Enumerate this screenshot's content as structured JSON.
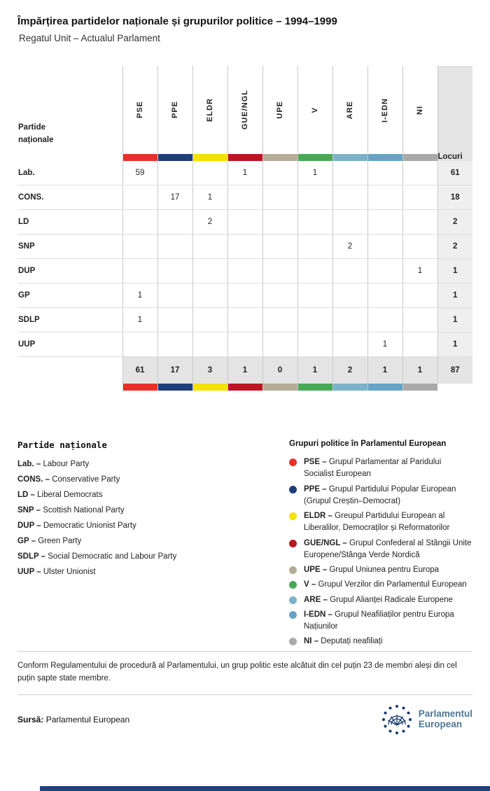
{
  "page": {
    "title": "Împărțirea partidelor naționale și grupurilor politice – 1994–1999",
    "subtitle": "Regatul Unit – Actualul Parlament"
  },
  "table": {
    "row_header_label": "Partide naționale",
    "seats_label": "Locuri",
    "groups": [
      {
        "code": "PSE",
        "color": "#e63129"
      },
      {
        "code": "PPE",
        "color": "#1e3d7b"
      },
      {
        "code": "ELDR",
        "color": "#f3e100"
      },
      {
        "code": "GUE/NGL",
        "color": "#bb1623"
      },
      {
        "code": "UPE",
        "color": "#b4ac97"
      },
      {
        "code": "V",
        "color": "#47a956"
      },
      {
        "code": "ARE",
        "color": "#7cb1ca"
      },
      {
        "code": "I-EDN",
        "color": "#66a3c4"
      },
      {
        "code": "NI",
        "color": "#a9a9a9"
      }
    ],
    "rows": [
      {
        "party": "Lab.",
        "values": [
          "59",
          "",
          "",
          "1",
          "",
          "1",
          "",
          "",
          ""
        ],
        "seats": "61"
      },
      {
        "party": "CONS.",
        "values": [
          "",
          "17",
          "1",
          "",
          "",
          "",
          "",
          "",
          ""
        ],
        "seats": "18"
      },
      {
        "party": "LD",
        "values": [
          "",
          "",
          "2",
          "",
          "",
          "",
          "",
          "",
          ""
        ],
        "seats": "2"
      },
      {
        "party": "SNP",
        "values": [
          "",
          "",
          "",
          "",
          "",
          "",
          "2",
          "",
          ""
        ],
        "seats": "2"
      },
      {
        "party": "DUP",
        "values": [
          "",
          "",
          "",
          "",
          "",
          "",
          "",
          "",
          "1"
        ],
        "seats": "1"
      },
      {
        "party": "GP",
        "values": [
          "1",
          "",
          "",
          "",
          "",
          "",
          "",
          "",
          ""
        ],
        "seats": "1"
      },
      {
        "party": "SDLP",
        "values": [
          "1",
          "",
          "",
          "",
          "",
          "",
          "",
          "",
          ""
        ],
        "seats": "1"
      },
      {
        "party": "UUP",
        "values": [
          "",
          "",
          "",
          "",
          "",
          "",
          "",
          "1",
          ""
        ],
        "seats": "1"
      }
    ],
    "totals": {
      "values": [
        "61",
        "17",
        "3",
        "1",
        "0",
        "1",
        "2",
        "1",
        "1"
      ],
      "seats": "87"
    }
  },
  "legend_parties": {
    "title": "Partide naționale",
    "items": [
      {
        "abbr": "Lab.",
        "name": "Labour Party"
      },
      {
        "abbr": "CONS.",
        "name": "Conservative Party"
      },
      {
        "abbr": "LD",
        "name": "Liberal Democrats"
      },
      {
        "abbr": "SNP",
        "name": "Scottish National Party"
      },
      {
        "abbr": "DUP",
        "name": "Democratic Unionist Party"
      },
      {
        "abbr": "GP",
        "name": "Green Party"
      },
      {
        "abbr": "SDLP",
        "name": "Social Democratic and Labour Party"
      },
      {
        "abbr": "UUP",
        "name": "Ulster Unionist"
      }
    ]
  },
  "legend_groups": {
    "title": "Grupuri politice în Parlamentul European",
    "items": [
      {
        "abbr": "PSE",
        "color": "#e63129",
        "name": "Grupul Parlamentar al Paridului Socialist European"
      },
      {
        "abbr": "PPE",
        "color": "#1e3d7b",
        "name": "Grupul Partidului Popular European (Grupul Creștin–Democrat)"
      },
      {
        "abbr": "ELDR",
        "color": "#f3e100",
        "name": "Greupul Partidului European al Liberalilor, Democraților și Reformatorilor"
      },
      {
        "abbr": "GUE/NGL",
        "color": "#bb1623",
        "name": "Grupul Confederal al Stângii Unite Europene/Stânga Verde Nordică"
      },
      {
        "abbr": "UPE",
        "color": "#b4ac97",
        "name": "Grupul Uniunea pentru Europa"
      },
      {
        "abbr": "V",
        "color": "#47a956",
        "name": "Grupul Verzilor din Parlamentul European"
      },
      {
        "abbr": "ARE",
        "color": "#7cb1ca",
        "name": "Grupul Alianței Radicale Europene"
      },
      {
        "abbr": "I-EDN",
        "color": "#66a3c4",
        "name": "Grupul Neafiliaților pentru Europa Națiunilor"
      },
      {
        "abbr": "NI",
        "color": "#a9a9a9",
        "name": "Deputați neafiliați"
      }
    ]
  },
  "footnote": "Conform Regulamentului de procedură al Parlamentului, un grup politic este alcătuit din cel puțin 23 de membri aleși din cel puțin șapte state membre.",
  "source": {
    "label": "Sursă:",
    "text": "Parlamentul European"
  },
  "logo": {
    "line1": "Parlamentul",
    "line2": "European"
  },
  "chart_data": {
    "type": "table",
    "title": "Împărțirea partidelor naționale și grupurilor politice – 1994–1999",
    "subtitle": "Regatul Unit – Actualul Parlament",
    "columns": [
      "PSE",
      "PPE",
      "ELDR",
      "GUE/NGL",
      "UPE",
      "V",
      "ARE",
      "I-EDN",
      "NI",
      "Locuri"
    ],
    "row_labels": [
      "Lab.",
      "CONS.",
      "LD",
      "SNP",
      "DUP",
      "GP",
      "SDLP",
      "UUP",
      "Total"
    ],
    "matrix": [
      [
        59,
        null,
        null,
        1,
        null,
        1,
        null,
        null,
        null,
        61
      ],
      [
        null,
        17,
        1,
        null,
        null,
        null,
        null,
        null,
        null,
        18
      ],
      [
        null,
        null,
        2,
        null,
        null,
        null,
        null,
        null,
        null,
        2
      ],
      [
        null,
        null,
        null,
        null,
        null,
        null,
        2,
        null,
        null,
        2
      ],
      [
        null,
        null,
        null,
        null,
        null,
        null,
        null,
        null,
        1,
        1
      ],
      [
        1,
        null,
        null,
        null,
        null,
        null,
        null,
        null,
        null,
        1
      ],
      [
        1,
        null,
        null,
        null,
        null,
        null,
        null,
        null,
        null,
        1
      ],
      [
        null,
        null,
        null,
        null,
        null,
        null,
        null,
        1,
        null,
        1
      ],
      [
        61,
        17,
        3,
        1,
        0,
        1,
        2,
        1,
        1,
        87
      ]
    ]
  }
}
